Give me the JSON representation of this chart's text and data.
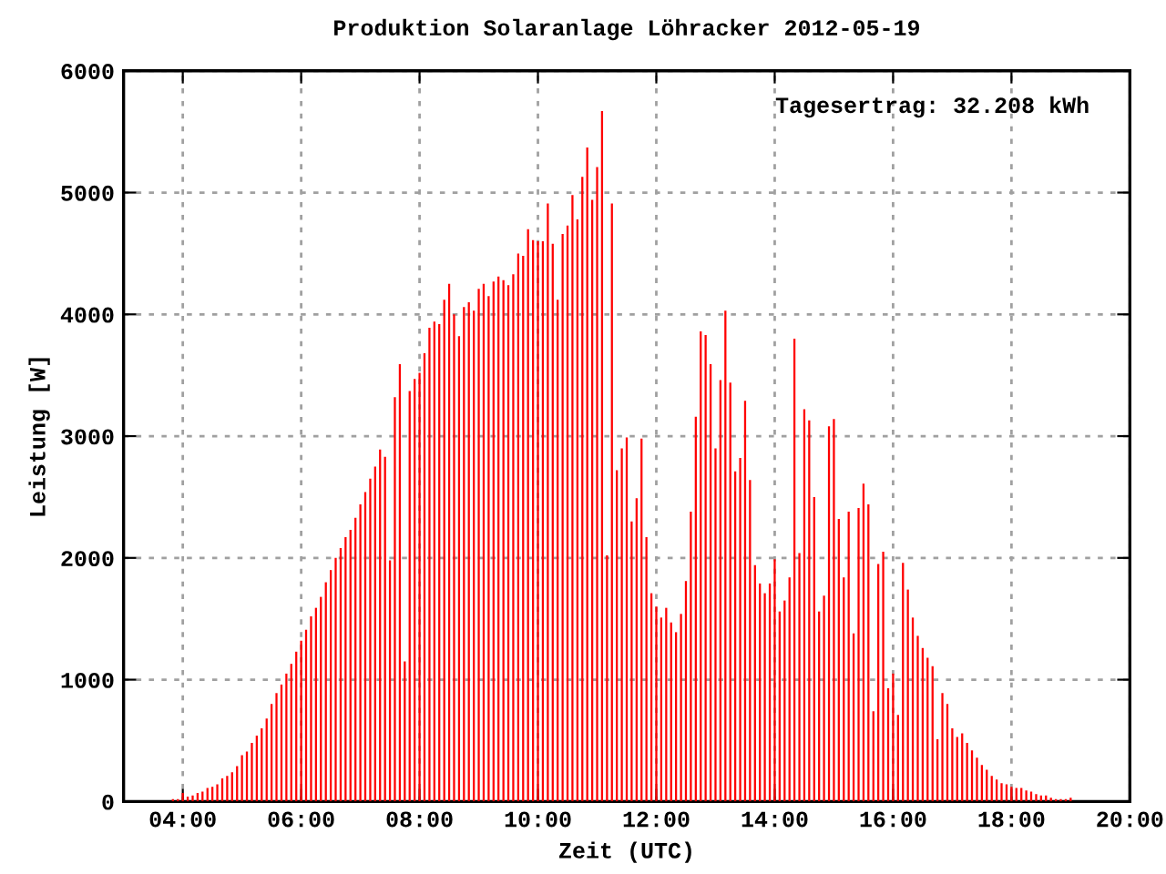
{
  "chart_data": {
    "type": "bar",
    "title": "Produktion Solaranlage Löhracker 2012-05-19",
    "xlabel": "Zeit (UTC)",
    "ylabel": "Leistung [W]",
    "annotations": [
      "Tagesertrag: 32.208 kWh"
    ],
    "x": [
      3.833,
      3.917,
      4.0,
      4.083,
      4.167,
      4.25,
      4.333,
      4.417,
      4.5,
      4.583,
      4.667,
      4.75,
      4.833,
      4.917,
      5.0,
      5.083,
      5.167,
      5.25,
      5.333,
      5.417,
      5.5,
      5.583,
      5.667,
      5.75,
      5.833,
      5.917,
      6.0,
      6.083,
      6.167,
      6.25,
      6.333,
      6.417,
      6.5,
      6.583,
      6.667,
      6.75,
      6.833,
      6.917,
      7.0,
      7.083,
      7.167,
      7.25,
      7.333,
      7.417,
      7.5,
      7.583,
      7.667,
      7.75,
      7.833,
      7.917,
      8.0,
      8.083,
      8.167,
      8.25,
      8.333,
      8.417,
      8.5,
      8.583,
      8.667,
      8.75,
      8.833,
      8.917,
      9.0,
      9.083,
      9.167,
      9.25,
      9.333,
      9.417,
      9.5,
      9.583,
      9.667,
      9.75,
      9.833,
      9.917,
      10.0,
      10.083,
      10.167,
      10.25,
      10.333,
      10.417,
      10.5,
      10.583,
      10.667,
      10.75,
      10.833,
      10.917,
      11.0,
      11.083,
      11.167,
      11.25,
      11.333,
      11.417,
      11.5,
      11.583,
      11.667,
      11.75,
      11.833,
      11.917,
      12.0,
      12.083,
      12.167,
      12.25,
      12.333,
      12.417,
      12.5,
      12.583,
      12.667,
      12.75,
      12.833,
      12.917,
      13.0,
      13.083,
      13.167,
      13.25,
      13.333,
      13.417,
      13.5,
      13.583,
      13.667,
      13.75,
      13.833,
      13.917,
      14.0,
      14.083,
      14.167,
      14.25,
      14.333,
      14.417,
      14.5,
      14.583,
      14.667,
      14.75,
      14.833,
      14.917,
      15.0,
      15.083,
      15.167,
      15.25,
      15.333,
      15.417,
      15.5,
      15.583,
      15.667,
      15.75,
      15.833,
      15.917,
      16.0,
      16.083,
      16.167,
      16.25,
      16.333,
      16.417,
      16.5,
      16.583,
      16.667,
      16.75,
      16.833,
      16.917,
      17.0,
      17.083,
      17.167,
      17.25,
      17.333,
      17.417,
      17.5,
      17.583,
      17.667,
      17.75,
      17.833,
      17.917,
      18.0,
      18.083,
      18.167,
      18.25,
      18.333,
      18.417,
      18.5,
      18.583,
      18.667,
      18.75,
      18.833,
      18.917,
      19.0
    ],
    "values": [
      20,
      20,
      70,
      40,
      50,
      70,
      80,
      110,
      120,
      140,
      190,
      210,
      240,
      290,
      380,
      410,
      480,
      540,
      600,
      680,
      800,
      890,
      960,
      1050,
      1130,
      1230,
      1320,
      1410,
      1520,
      1590,
      1680,
      1800,
      1900,
      2000,
      2080,
      2170,
      2230,
      2330,
      2440,
      2540,
      2650,
      2750,
      2890,
      2830,
      1980,
      3320,
      3590,
      1150,
      3370,
      3470,
      3520,
      3680,
      3890,
      3940,
      3920,
      4120,
      4250,
      4000,
      3820,
      4060,
      4100,
      4030,
      4210,
      4250,
      4150,
      4270,
      4310,
      4280,
      4240,
      4330,
      4500,
      4480,
      4700,
      4610,
      4600,
      4600,
      4910,
      4580,
      4120,
      4660,
      4730,
      4980,
      4780,
      5130,
      5370,
      4940,
      5210,
      5670,
      2020,
      4910,
      2720,
      2900,
      2990,
      2300,
      2490,
      2980,
      2170,
      1710,
      1600,
      1510,
      1590,
      1470,
      1390,
      1540,
      1810,
      2380,
      3160,
      3860,
      3830,
      3590,
      2900,
      3460,
      4030,
      3440,
      2710,
      2820,
      3290,
      2640,
      1940,
      1790,
      1710,
      1790,
      1990,
      1560,
      1650,
      1840,
      3800,
      2040,
      3220,
      3130,
      2500,
      1560,
      1690,
      3080,
      3140,
      2320,
      1840,
      2380,
      1380,
      2410,
      2610,
      2440,
      740,
      1950,
      2050,
      930,
      1050,
      710,
      1960,
      1740,
      1510,
      1360,
      1260,
      1180,
      1110,
      510,
      890,
      800,
      600,
      530,
      560,
      480,
      420,
      360,
      300,
      260,
      210,
      180,
      150,
      140,
      120,
      110,
      110,
      90,
      80,
      60,
      50,
      50,
      30,
      20,
      20,
      20,
      30
    ],
    "color": "#ff0000",
    "xlim": [
      3,
      20
    ],
    "xticks": [
      {
        "value": 4,
        "label": "04:00"
      },
      {
        "value": 6,
        "label": "06:00"
      },
      {
        "value": 8,
        "label": "08:00"
      },
      {
        "value": 10,
        "label": "10:00"
      },
      {
        "value": 12,
        "label": "12:00"
      },
      {
        "value": 14,
        "label": "14:00"
      },
      {
        "value": 16,
        "label": "16:00"
      },
      {
        "value": 18,
        "label": "18:00"
      },
      {
        "value": 20,
        "label": "20:00"
      }
    ],
    "ylim": [
      0,
      6000
    ],
    "yticks": [
      0,
      1000,
      2000,
      3000,
      4000,
      5000,
      6000
    ],
    "grid": true
  }
}
